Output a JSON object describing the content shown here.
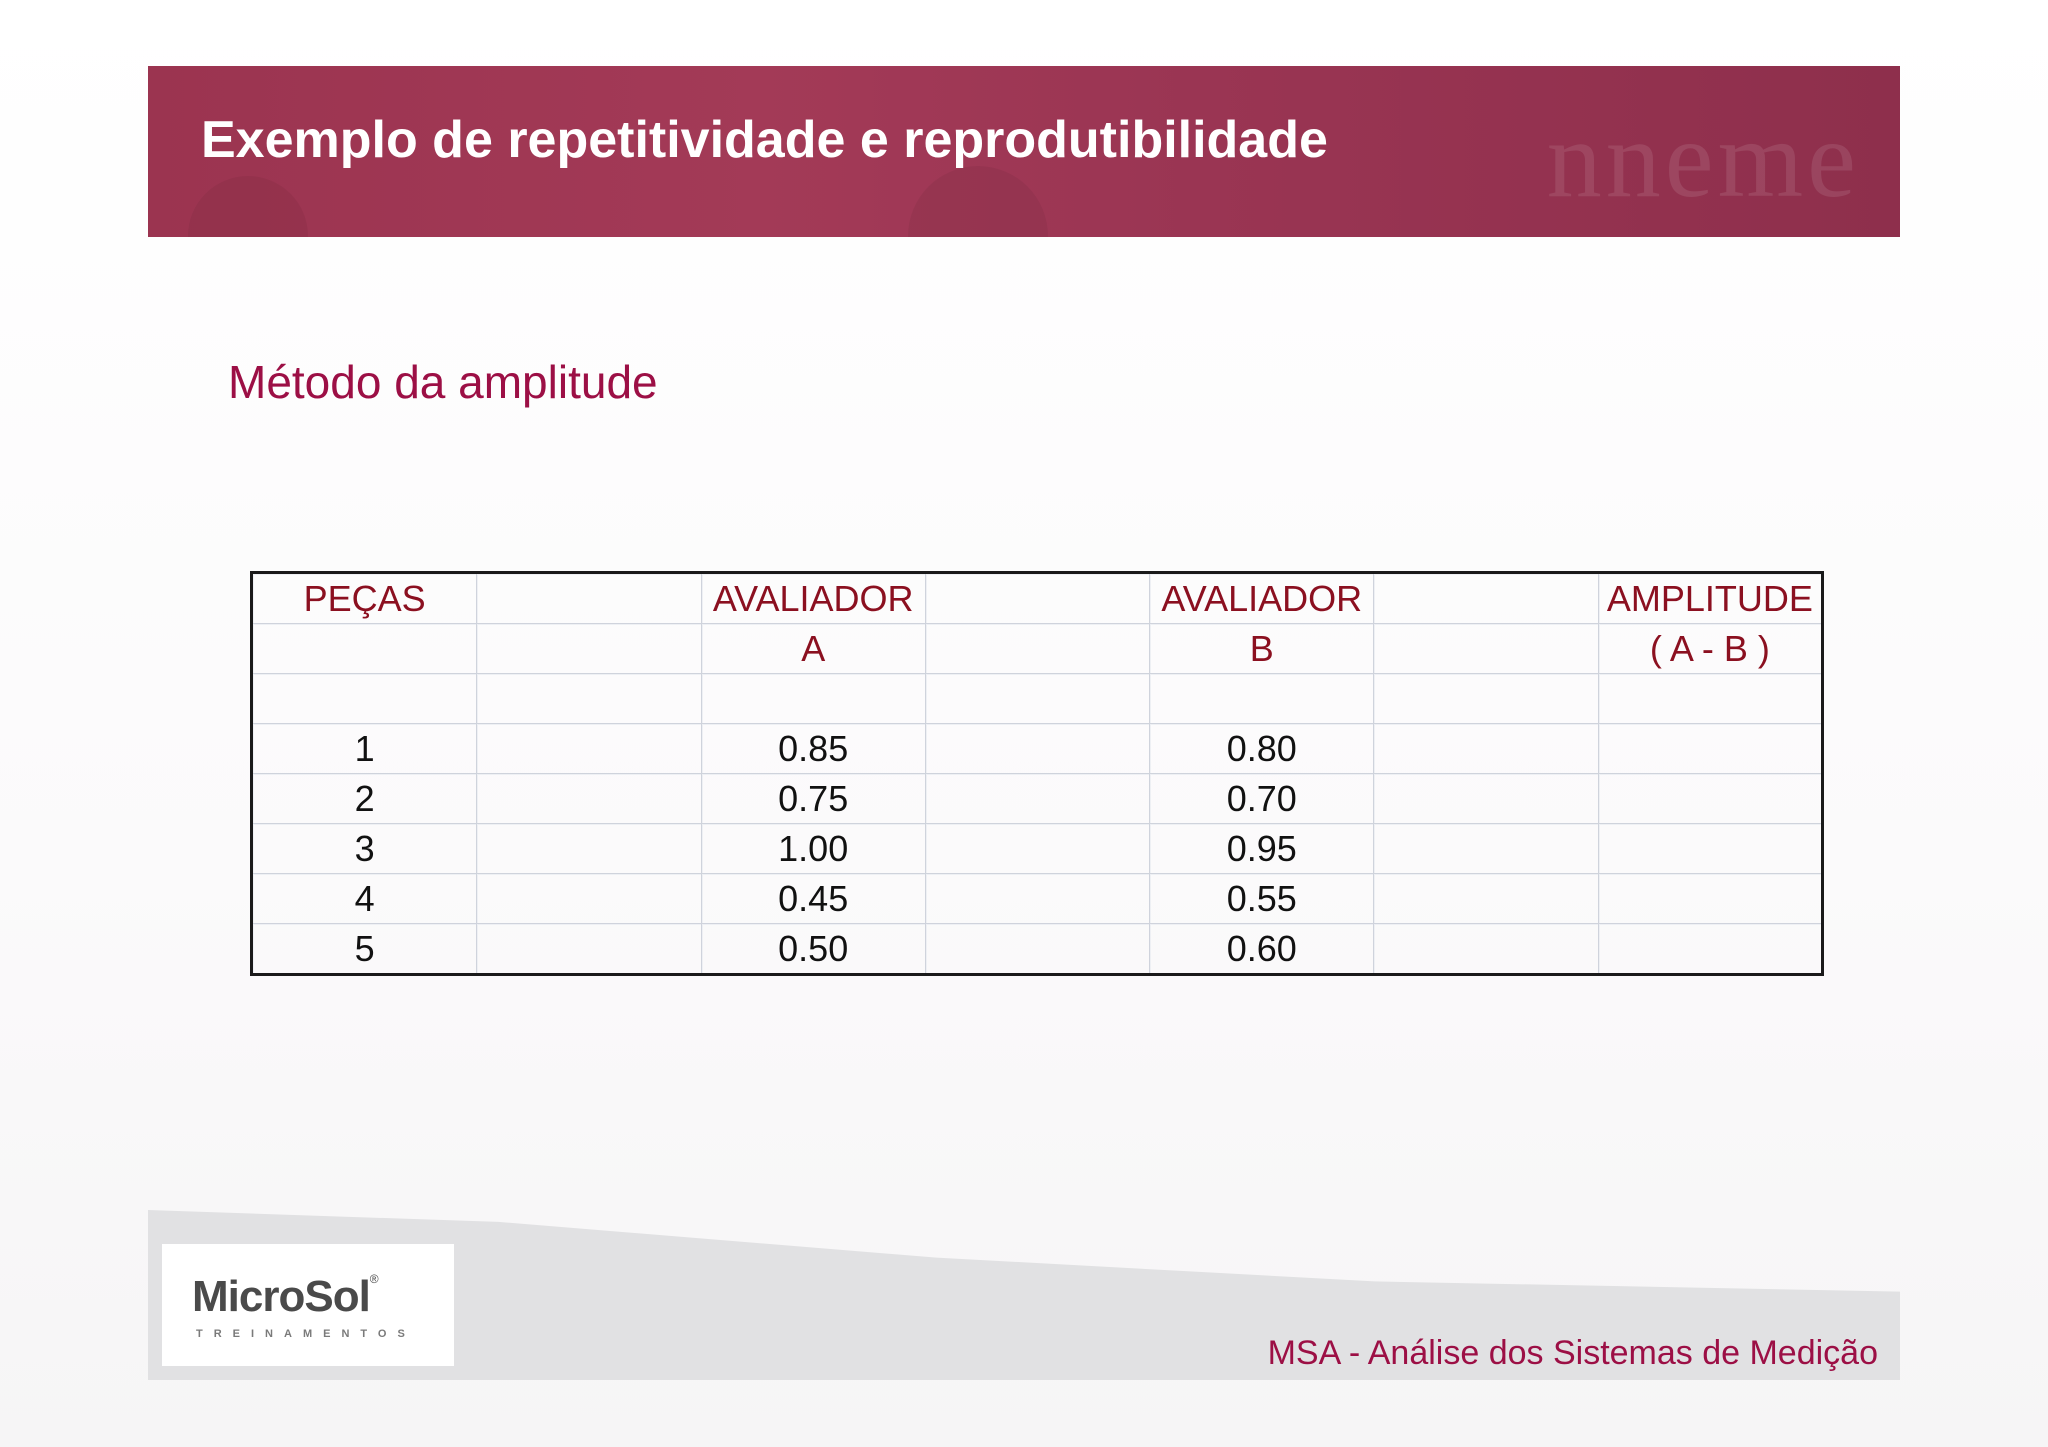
{
  "header": {
    "title": "Exemplo de repetitividade e reprodutibilidade"
  },
  "subtitle": "Método da amplitude",
  "table": {
    "header_row1": [
      "PEÇAS",
      "",
      "AVALIADOR",
      "",
      "AVALIADOR",
      "",
      "AMPLITUDE"
    ],
    "header_row2": [
      "",
      "",
      "A",
      "",
      "B",
      "",
      "( A - B )"
    ],
    "rows": [
      [
        "1",
        "0.85",
        "0.80"
      ],
      [
        "2",
        "0.75",
        "0.70"
      ],
      [
        "3",
        "1.00",
        "0.95"
      ],
      [
        "4",
        "0.45",
        "0.55"
      ],
      [
        "5",
        "0.50",
        "0.60"
      ]
    ]
  },
  "footer": {
    "logo": {
      "name": "MicroSol",
      "reg": "®",
      "tagline": "TREINAMENTOS"
    },
    "text": "MSA - Análise dos Sistemas de Medição"
  }
}
